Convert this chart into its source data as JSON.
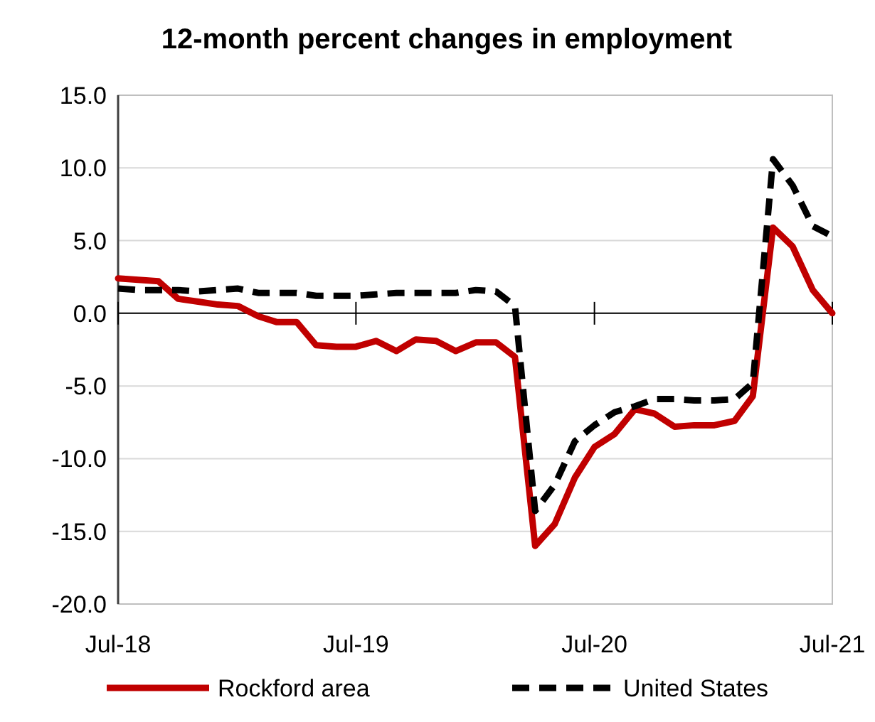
{
  "chart_data": {
    "type": "line",
    "title": "12-month percent changes in employment",
    "x": [
      "2018-07",
      "2018-08",
      "2018-09",
      "2018-10",
      "2018-11",
      "2018-12",
      "2019-01",
      "2019-02",
      "2019-03",
      "2019-04",
      "2019-05",
      "2019-06",
      "2019-07",
      "2019-08",
      "2019-09",
      "2019-10",
      "2019-11",
      "2019-12",
      "2020-01",
      "2020-02",
      "2020-03",
      "2020-04",
      "2020-05",
      "2020-06",
      "2020-07",
      "2020-08",
      "2020-09",
      "2020-10",
      "2020-11",
      "2020-12",
      "2021-01",
      "2021-02",
      "2021-03",
      "2021-04",
      "2021-05",
      "2021-06",
      "2021-07"
    ],
    "series": [
      {
        "name": "Rockford area",
        "color": "#c00000",
        "line_style": "solid",
        "values": [
          2.4,
          2.3,
          2.2,
          1.0,
          0.8,
          0.6,
          0.5,
          -0.2,
          -0.6,
          -0.6,
          -2.2,
          -2.3,
          -2.3,
          -1.9,
          -2.6,
          -1.8,
          -1.9,
          -2.6,
          -2.0,
          -2.0,
          -3.0,
          -16.0,
          -14.5,
          -11.3,
          -9.2,
          -8.3,
          -6.6,
          -6.9,
          -7.8,
          -7.7,
          -7.7,
          -7.4,
          -5.7,
          5.9,
          4.6,
          1.6,
          0.0
        ]
      },
      {
        "name": "United States",
        "color": "#000000",
        "line_style": "dashed",
        "values": [
          1.7,
          1.6,
          1.6,
          1.6,
          1.5,
          1.6,
          1.7,
          1.4,
          1.4,
          1.4,
          1.2,
          1.2,
          1.2,
          1.3,
          1.4,
          1.4,
          1.4,
          1.4,
          1.6,
          1.5,
          0.5,
          -13.6,
          -11.8,
          -8.8,
          -7.7,
          -6.8,
          -6.4,
          -5.9,
          -5.9,
          -6.0,
          -6.0,
          -5.9,
          -4.8,
          10.6,
          8.8,
          6.0,
          5.3
        ]
      }
    ],
    "xlim": [
      "2018-07",
      "2021-07"
    ],
    "xticks": [
      {
        "value": "2018-07",
        "label": "Jul-18"
      },
      {
        "value": "2019-07",
        "label": "Jul-19"
      },
      {
        "value": "2020-07",
        "label": "Jul-20"
      },
      {
        "value": "2021-07",
        "label": "Jul-21"
      }
    ],
    "ylim": [
      -20,
      15
    ],
    "yticks": [
      {
        "value": 15,
        "label": "15.0"
      },
      {
        "value": 10,
        "label": "10.0"
      },
      {
        "value": 5,
        "label": "5.0"
      },
      {
        "value": 0,
        "label": "0.0"
      },
      {
        "value": -5,
        "label": "-5.0"
      },
      {
        "value": -10,
        "label": "-10.0"
      },
      {
        "value": -15,
        "label": "-15.0"
      },
      {
        "value": -20,
        "label": "-20.0"
      }
    ],
    "grid": "y",
    "legend": "bottom",
    "marker": "none"
  }
}
